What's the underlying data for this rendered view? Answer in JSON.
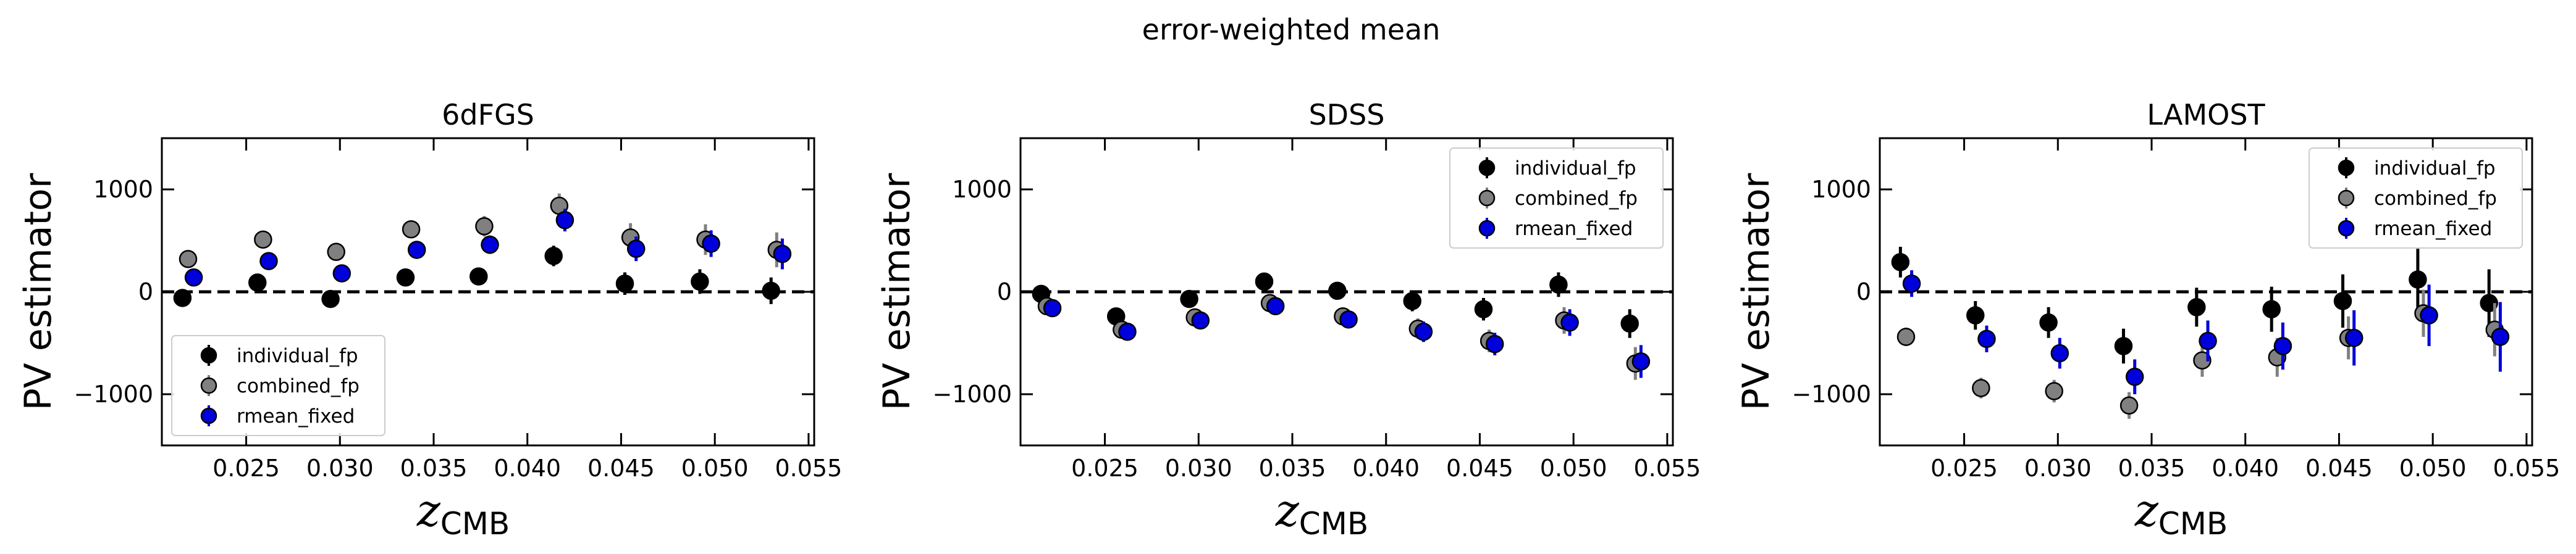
{
  "suptitle": "error-weighted mean",
  "colors": {
    "individual_fp": "#000000",
    "combined_fp": "#808080",
    "rmean_fixed": "#0000dd"
  },
  "chart_data": [
    {
      "type": "scatter",
      "title": "6dFGS",
      "ylabel": "PV estimator",
      "xlabel_main": "z",
      "xlabel_sub": "CMB",
      "xlim": [
        0.0205,
        0.0553
      ],
      "ylim": [
        -1500,
        1500
      ],
      "xticks": [
        "0.025",
        "0.030",
        "0.035",
        "0.040",
        "0.045",
        "0.050",
        "0.055"
      ],
      "yticks": [
        "1000",
        "0",
        "−1000"
      ],
      "legend_position": "lower-left",
      "series": [
        {
          "name": "individual_fp",
          "x": [
            0.0216,
            0.0256,
            0.0295,
            0.0335,
            0.0374,
            0.0414,
            0.0452,
            0.0492,
            0.053
          ],
          "y": [
            -60,
            90,
            -70,
            140,
            150,
            350,
            80,
            100,
            10
          ],
          "err": [
            40,
            50,
            50,
            60,
            80,
            100,
            110,
            120,
            130
          ]
        },
        {
          "name": "combined_fp",
          "x": [
            0.0219,
            0.0259,
            0.0298,
            0.0338,
            0.0377,
            0.0417,
            0.0455,
            0.0495,
            0.0533
          ],
          "y": [
            320,
            510,
            390,
            610,
            640,
            840,
            530,
            510,
            410
          ],
          "err": [
            50,
            60,
            60,
            80,
            100,
            120,
            140,
            150,
            170
          ]
        },
        {
          "name": "rmean_fixed",
          "x": [
            0.0222,
            0.0262,
            0.0301,
            0.0341,
            0.038,
            0.042,
            0.0458,
            0.0498,
            0.0536
          ],
          "y": [
            140,
            300,
            180,
            410,
            460,
            700,
            420,
            470,
            370
          ],
          "err": [
            50,
            60,
            60,
            70,
            90,
            110,
            120,
            130,
            150
          ]
        }
      ]
    },
    {
      "type": "scatter",
      "title": "SDSS",
      "ylabel": "PV estimator",
      "xlabel_main": "z",
      "xlabel_sub": "CMB",
      "xlim": [
        0.0205,
        0.0553
      ],
      "ylim": [
        -1500,
        1500
      ],
      "xticks": [
        "0.025",
        "0.030",
        "0.035",
        "0.040",
        "0.045",
        "0.050",
        "0.055"
      ],
      "yticks": [
        "1000",
        "0",
        "−1000"
      ],
      "legend_position": "upper-right",
      "series": [
        {
          "name": "individual_fp",
          "x": [
            0.0216,
            0.0256,
            0.0295,
            0.0335,
            0.0374,
            0.0414,
            0.0452,
            0.0492,
            0.053
          ],
          "y": [
            -20,
            -240,
            -70,
            100,
            10,
            -90,
            -170,
            70,
            -310
          ],
          "err": [
            40,
            50,
            50,
            60,
            80,
            100,
            110,
            120,
            140
          ]
        },
        {
          "name": "combined_fp",
          "x": [
            0.0219,
            0.0259,
            0.0298,
            0.0338,
            0.0377,
            0.0417,
            0.0455,
            0.0495,
            0.0533
          ],
          "y": [
            -140,
            -370,
            -250,
            -110,
            -240,
            -360,
            -480,
            -280,
            -700
          ],
          "err": [
            40,
            60,
            60,
            70,
            80,
            100,
            110,
            130,
            160
          ]
        },
        {
          "name": "rmean_fixed",
          "x": [
            0.0222,
            0.0262,
            0.0301,
            0.0341,
            0.038,
            0.042,
            0.0458,
            0.0498,
            0.0536
          ],
          "y": [
            -160,
            -390,
            -280,
            -140,
            -270,
            -390,
            -510,
            -300,
            -680
          ],
          "err": [
            40,
            60,
            60,
            70,
            80,
            100,
            110,
            130,
            160
          ]
        }
      ]
    },
    {
      "type": "scatter",
      "title": "LAMOST",
      "ylabel": "PV estimator",
      "xlabel_main": "z",
      "xlabel_sub": "CMB",
      "xlim": [
        0.0205,
        0.0553
      ],
      "ylim": [
        -1500,
        1500
      ],
      "xticks": [
        "0.025",
        "0.030",
        "0.035",
        "0.040",
        "0.045",
        "0.050",
        "0.055"
      ],
      "yticks": [
        "1000",
        "0",
        "−1000"
      ],
      "legend_position": "upper-right",
      "series": [
        {
          "name": "individual_fp",
          "x": [
            0.0216,
            0.0256,
            0.0295,
            0.0335,
            0.0374,
            0.0414,
            0.0452,
            0.0492,
            0.053
          ],
          "y": [
            290,
            -230,
            -300,
            -530,
            -150,
            -170,
            -90,
            120,
            -110
          ],
          "err": [
            150,
            140,
            150,
            170,
            190,
            220,
            260,
            300,
            330
          ]
        },
        {
          "name": "combined_fp",
          "x": [
            0.0219,
            0.0259,
            0.0298,
            0.0338,
            0.0377,
            0.0417,
            0.0455,
            0.0495,
            0.0533
          ],
          "y": [
            -440,
            -940,
            -970,
            -1110,
            -670,
            -640,
            -450,
            -210,
            -370
          ],
          "err": [
            90,
            100,
            110,
            130,
            160,
            190,
            210,
            230,
            260
          ]
        },
        {
          "name": "rmean_fixed",
          "x": [
            0.0222,
            0.0262,
            0.0301,
            0.0341,
            0.038,
            0.042,
            0.0458,
            0.0498,
            0.0536
          ],
          "y": [
            80,
            -460,
            -600,
            -830,
            -480,
            -530,
            -450,
            -230,
            -440
          ],
          "err": [
            130,
            130,
            150,
            170,
            200,
            230,
            270,
            300,
            340
          ]
        }
      ]
    }
  ]
}
